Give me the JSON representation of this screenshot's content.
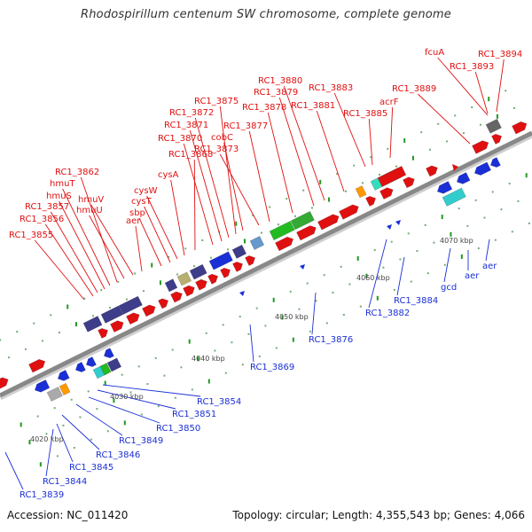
{
  "header": {
    "title": "Rhodospirillum centenum SW chromosome, complete genome"
  },
  "footer": {
    "accession": "Accession: NC_011420",
    "topology": "Topology: circular; Length: 4,355,543 bp; Genes: 4,066"
  },
  "colors": {
    "forward_cds": "#e01010",
    "reverse_cds": "#1a2fd6",
    "cog_group": "#3d3d8a",
    "green": "#22bb22",
    "teal": "#33ddbb",
    "cyan": "#33cccc",
    "orange": "#ff9900",
    "gray": "#666666",
    "backbone": "#888888"
  },
  "scale_marks": [
    "4020 kbp",
    "4030 kbp",
    "4040 kbp",
    "4050 kbp",
    "4060 kbp",
    "4070 kbp"
  ],
  "gene_labels_forward": [
    "RC1_3855",
    "RC1_3856",
    "RC1_3857",
    "hmuS",
    "hmuT",
    "RC1_3862",
    "hmuU",
    "hmuV",
    "aer",
    "sbp",
    "cysT",
    "cysW",
    "cysA",
    "RC1_3868",
    "RC1_3870",
    "RC1_3871",
    "RC1_3872",
    "RC1_3875",
    "cobC",
    "RC1_3873",
    "RC1_3877",
    "RC1_3878",
    "RC1_3879",
    "RC1_3880",
    "RC1_3881",
    "RC1_3883",
    "RC1_3885",
    "acrF",
    "RC1_3889",
    "fcuA",
    "RC1_3893",
    "RC1_3894"
  ],
  "gene_labels_reverse": [
    "RC1_3854",
    "RC1_3851",
    "RC1_3850",
    "RC1_3849",
    "RC1_3846",
    "RC1_3845",
    "RC1_3844",
    "RC1_3839",
    "RC1_3869",
    "RC1_3876",
    "RC1_3882",
    "RC1_3884",
    "gcd",
    "aer",
    "aer"
  ]
}
